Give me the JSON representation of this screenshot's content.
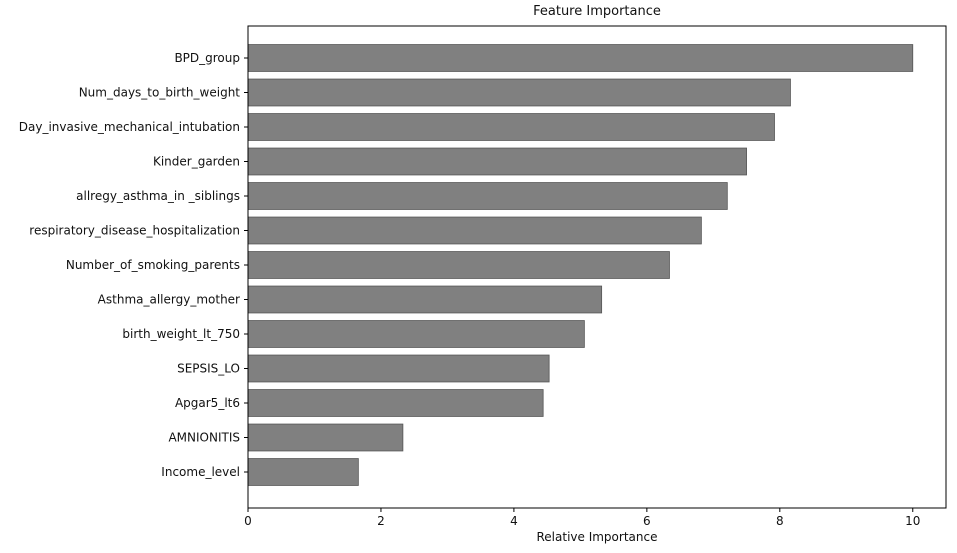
{
  "chart_data": {
    "type": "barh",
    "title": "Feature Importance",
    "xlabel": "Relative Importance",
    "categories": [
      "BPD_group",
      "Num_days_to_birth_weight",
      "Day_invasive_mechanical_intubation",
      "Kinder_garden",
      "allregy_asthma_in _siblings",
      "respiratory_disease_hospitalization",
      "Number_of_smoking_parents",
      "Asthma_allergy_mother",
      "birth_weight_lt_750",
      "SEPSIS_LO",
      "Apgar5_lt6",
      "AMNIONITIS",
      "Income_level"
    ],
    "values": [
      10.0,
      8.16,
      7.92,
      7.5,
      7.21,
      6.82,
      6.34,
      5.32,
      5.06,
      4.53,
      4.44,
      2.33,
      1.66
    ],
    "color": "#808080",
    "xlim": [
      0,
      10.5
    ],
    "xticks": [
      0,
      2,
      4,
      6,
      8,
      10
    ]
  }
}
